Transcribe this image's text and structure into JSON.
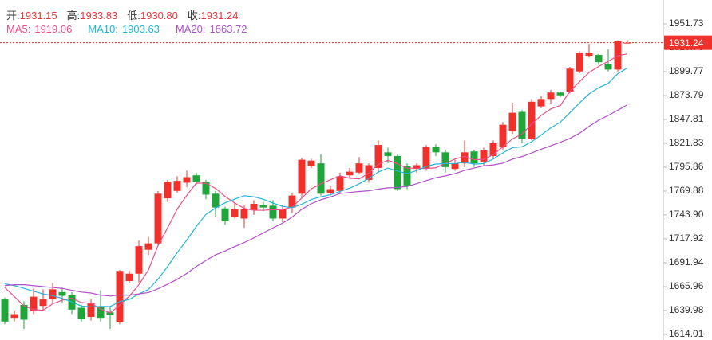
{
  "chart_data": {
    "type": "candlestick",
    "up_color": "#f0302a",
    "down_color": "#1fa53a",
    "ylim": [
      1607.9,
      1977.7
    ],
    "yticks": [
      1951.73,
      1925.75,
      1899.77,
      1873.79,
      1847.81,
      1821.83,
      1795.86,
      1769.88,
      {
        "value": 1743.9,
        "label": "1743.90"
      },
      1717.92,
      1691.94,
      1665.96,
      1639.98,
      1614.01
    ],
    "ohlc_legend": [
      {
        "label": "开:",
        "value": 1931.15
      },
      {
        "label": "高:",
        "value": 1933.83
      },
      {
        "label": "低:",
        "value": 1930.8,
        "value_label": "1930.80"
      },
      {
        "label": "收:",
        "value": 1931.24
      }
    ],
    "open": [
      1652,
      1632,
      1646,
      1640,
      1645,
      1652,
      1660,
      1657,
      1643,
      1633,
      1644,
      1638,
      1627,
      1672,
      1680,
      1706,
      1713,
      1762,
      1770,
      1779,
      1787,
      1780,
      1767,
      1751,
      1742,
      1740,
      1749,
      1755,
      1754,
      1740,
      1752,
      1767,
      1797,
      1800,
      1768,
      1770,
      1787,
      1790,
      1782,
      1795,
      1812,
      1808,
      1797,
      1794,
      1795,
      1818,
      1812,
      1794,
      1800,
      1813,
      1802,
      1808,
      1818,
      1835,
      1856,
      1827,
      1862,
      1870,
      1877,
      1878,
      1900,
      1917,
      1918,
      1908,
      1902,
      1931.15
    ],
    "high": [
      1654,
      1640,
      1650,
      1664,
      1663,
      1670,
      1665,
      1660,
      1646,
      1652,
      1662,
      1645,
      1684,
      1683,
      1716,
      1720,
      1770,
      1782,
      1786,
      1792,
      1790,
      1782,
      1770,
      1753,
      1757,
      1754,
      1760,
      1758,
      1760,
      1755,
      1768,
      1806,
      1805,
      1810,
      1776,
      1790,
      1795,
      1807,
      1800,
      1825,
      1817,
      1810,
      1800,
      1800,
      1820,
      1821,
      1815,
      1804,
      1825,
      1815,
      1817,
      1825,
      1845,
      1866,
      1858,
      1870,
      1873,
      1880,
      1878,
      1905,
      1922,
      1930,
      1919,
      1924,
      1934,
      1933.83
    ],
    "low": [
      1625,
      1628,
      1620,
      1636,
      1640,
      1648,
      1648,
      1636,
      1628,
      1629,
      1628,
      1620,
      1625,
      1670,
      1670,
      1700,
      1710,
      1758,
      1768,
      1774,
      1777,
      1761,
      1742,
      1733,
      1740,
      1730,
      1744,
      1748,
      1737,
      1736,
      1746,
      1762,
      1795,
      1765,
      1765,
      1768,
      1784,
      1788,
      1779,
      1790,
      1800,
      1770,
      1772,
      1790,
      1792,
      1808,
      1790,
      1792,
      1796,
      1796,
      1798,
      1806,
      1815,
      1832,
      1822,
      1825,
      1860,
      1865,
      1872,
      1876,
      1898,
      1915,
      1907,
      1900,
      1900,
      1930.8
    ],
    "close": [
      1628,
      1636,
      1630,
      1655,
      1652,
      1663,
      1656,
      1641,
      1631,
      1648,
      1632,
      1635,
      1683,
      1680,
      1710,
      1713,
      1767,
      1780,
      1781,
      1785,
      1780,
      1766,
      1752,
      1737,
      1750,
      1750,
      1756,
      1752,
      1740,
      1750,
      1765,
      1804,
      1803,
      1767,
      1772,
      1786,
      1791,
      1800,
      1798,
      1820,
      1808,
      1772,
      1776,
      1798,
      1818,
      1812,
      1796,
      1800,
      1812,
      1800,
      1814,
      1822,
      1842,
      1855,
      1827,
      1867,
      1870,
      1877,
      1874,
      1903,
      1920,
      1920,
      1910,
      1902,
      1933,
      1931.24
    ],
    "series": [
      {
        "name": "MA5:",
        "color": "#e8508a",
        "values": [
          1665,
          1655,
          1645,
          1641,
          1640.2,
          1647.2,
          1651.2,
          1653.4,
          1648.6,
          1647.8,
          1641.6,
          1637.4,
          1645.8,
          1655.6,
          1668,
          1684.2,
          1710.6,
          1730,
          1750.2,
          1765.2,
          1778.6,
          1778.4,
          1772.8,
          1764,
          1757,
          1751,
          1749,
          1749,
          1749.6,
          1749.6,
          1752.6,
          1762.2,
          1772.4,
          1777.8,
          1782.2,
          1786.4,
          1783.8,
          1783.2,
          1789.4,
          1799,
          1803.4,
          1799.6,
          1794.8,
          1794.8,
          1794.4,
          1795.2,
          1800,
          1804.8,
          1807.6,
          1804,
          1804.4,
          1809.6,
          1818,
          1826.6,
          1832,
          1842.6,
          1852.2,
          1859.2,
          1863,
          1878.2,
          1888.8,
          1898.8,
          1905.4,
          1911,
          1917,
          1919.06
        ]
      },
      {
        "name": "MA10:",
        "color": "#22b5d8",
        "values": [
          1669,
          1667,
          1664,
          1661,
          1658,
          1656.1,
          1653.1,
          1649.2,
          1644.8,
          1644,
          1644.4,
          1644.3,
          1649.6,
          1652.1,
          1657.9,
          1662.9,
          1674,
          1687.9,
          1702.9,
          1716.6,
          1731.4,
          1744.5,
          1751.4,
          1757.1,
          1761.1,
          1764.8,
          1763.7,
          1760.9,
          1756.8,
          1753.3,
          1751.8,
          1755.6,
          1760.7,
          1763.7,
          1765.9,
          1769.5,
          1773,
          1777.8,
          1783.6,
          1790.6,
          1794.9,
          1791.7,
          1789,
          1792.1,
          1796.7,
          1799.3,
          1799.8,
          1799.8,
          1801.2,
          1799.2,
          1799.8,
          1804.8,
          1811.4,
          1817.1,
          1818,
          1823.5,
          1830.9,
          1838.6,
          1844.8,
          1855.1,
          1865.7,
          1875.5,
          1882.3,
          1887,
          1897.6,
          1903.63
        ]
      },
      {
        "name": "MA20:",
        "color": "#b050c8",
        "values": [
          1667,
          1668,
          1668,
          1667,
          1666,
          1665,
          1664,
          1662,
          1660,
          1659,
          1656.7,
          1655.7,
          1656.8,
          1656.6,
          1658,
          1659.5,
          1663.6,
          1668.6,
          1673.9,
          1680.3,
          1687.9,
          1694.4,
          1700.5,
          1704.6,
          1709.5,
          1713.9,
          1718.9,
          1724.4,
          1729.9,
          1735,
          1741.6,
          1750.1,
          1756.1,
          1760.4,
          1763.5,
          1767.2,
          1768.4,
          1769.4,
          1770.2,
          1772,
          1773.4,
          1773.7,
          1774.9,
          1777.9,
          1781.3,
          1784.4,
          1786.4,
          1788.8,
          1792.4,
          1794.9,
          1797.4,
          1798.3,
          1800.2,
          1804.6,
          1807.4,
          1811.4,
          1815.4,
          1819.2,
          1823,
          1827.2,
          1832.8,
          1840.2,
          1846.9,
          1852.1,
          1857.8,
          1863.72
        ]
      }
    ]
  }
}
